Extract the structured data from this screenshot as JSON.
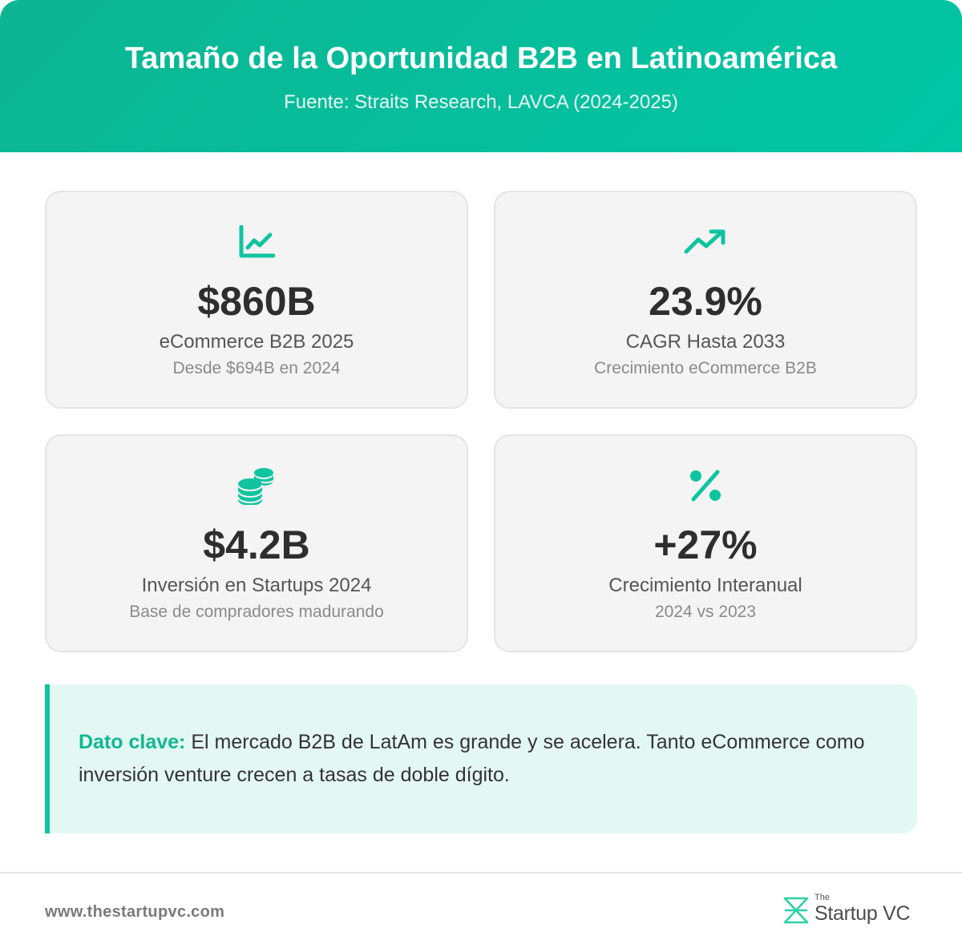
{
  "header": {
    "title": "Tamaño de la Oportunidad B2B en Latinoamérica",
    "subtitle": "Fuente: Straits Research, LAVCA (2024-2025)"
  },
  "stats": [
    {
      "icon": "line-chart-icon",
      "value": "$860B",
      "label": "eCommerce B2B 2025",
      "note": "Desde $694B en 2024"
    },
    {
      "icon": "trending-up-icon",
      "value": "23.9%",
      "label": "CAGR Hasta 2033",
      "note": "Crecimiento eCommerce B2B"
    },
    {
      "icon": "coins-icon",
      "value": "$4.2B",
      "label": "Inversión en Startups 2024",
      "note": "Base de compradores madurando"
    },
    {
      "icon": "percent-icon",
      "value": "+27%",
      "label": "Crecimiento Interanual",
      "note": "2024 vs 2023"
    }
  ],
  "insight": {
    "keyword": "Dato clave:",
    "text": "El mercado B2B de LatAm es grande y se acelera. Tanto eCommerce como inversión venture crecen a tasas de doble dígito."
  },
  "footer": {
    "url": "www.thestartupvc.com",
    "brand_the": "The",
    "brand_name": "Startup VC"
  },
  "colors": {
    "accent": "#00c6a5",
    "header_start": "#0db592",
    "card_bg": "#f4f4f4",
    "insight_bg": "#e4f8f3"
  }
}
